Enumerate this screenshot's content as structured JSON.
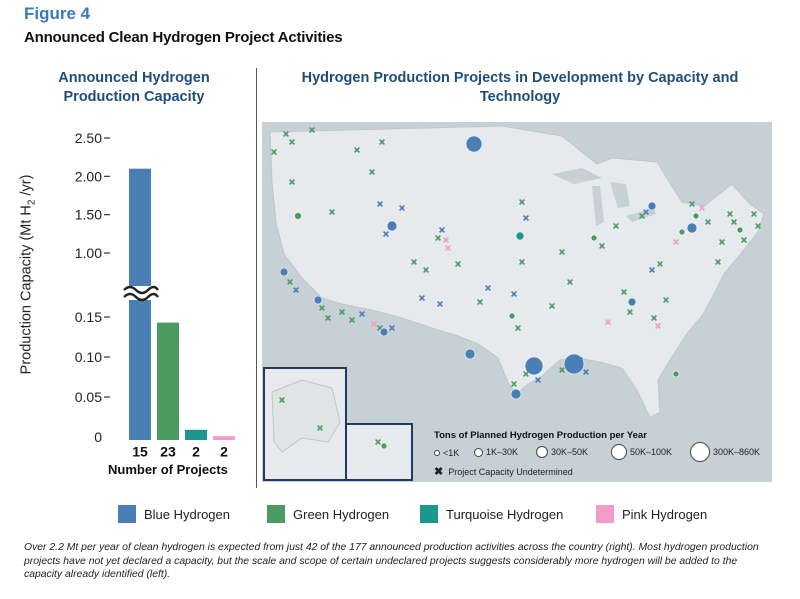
{
  "figure_label": "Figure 4",
  "figure_title": "Announced Clean Hydrogen Project Activities",
  "left_panel_title": "Announced Hydrogen Production Capacity",
  "right_panel_title": "Hydrogen Production Projects in Development by Capacity and Technology",
  "colors": {
    "blue": "#4a7fb5",
    "green": "#4a9a62",
    "turquoise": "#1d9690",
    "pink": "#f29ac9",
    "title": "#1f4e79",
    "figlabel": "#3b7ab8"
  },
  "chart_data": [
    {
      "type": "bar",
      "title": "Announced Hydrogen Production Capacity",
      "ylabel_main": "Production Capacity (Mt H",
      "ylabel_sub": "2",
      "ylabel_tail": " /yr)",
      "xlabel": "Number of Projects",
      "categories": [
        "15",
        "23",
        "2",
        "2"
      ],
      "series": [
        {
          "values": [
            2.1,
            0.143,
            0.009,
            0.001
          ]
        }
      ],
      "bar_colors": [
        "blue",
        "green",
        "turquoise",
        "pink"
      ],
      "axis_break": true,
      "upper_ticks": [
        "2.50",
        "2.00",
        "1.50",
        "1.00"
      ],
      "lower_ticks": [
        "0.15",
        "0.10",
        "0.05",
        "0"
      ],
      "ylim_lower": [
        0,
        0.17
      ],
      "ylim_upper": [
        0.9,
        2.5
      ]
    },
    {
      "type": "scatter",
      "title": "Hydrogen Production Projects in Development by Capacity and Technology",
      "legend_title": "Tons of Planned Hydrogen Production per Year",
      "size_classes": [
        "<1K",
        "1K–30K",
        "30K–50K",
        "50K–100K",
        "300K–860K"
      ],
      "undetermined_label": "Project Capacity Undetermined"
    }
  ],
  "legend": [
    {
      "label": "Blue Hydrogen",
      "color": "blue"
    },
    {
      "label": "Green Hydrogen",
      "color": "green"
    },
    {
      "label": "Turquoise Hydrogen",
      "color": "turquoise"
    },
    {
      "label": "Pink Hydrogen",
      "color": "pink"
    }
  ],
  "caption": "Over 2.2 Mt per year of clean hydrogen is expected from just 42 of the 177 announced production activities across the country (right). Most hydrogen production projects have not yet declared a capacity, but the scale and scope of certain undeclared projects suggests considerably more hydrogen will be added to the capacity already identified (left)."
}
